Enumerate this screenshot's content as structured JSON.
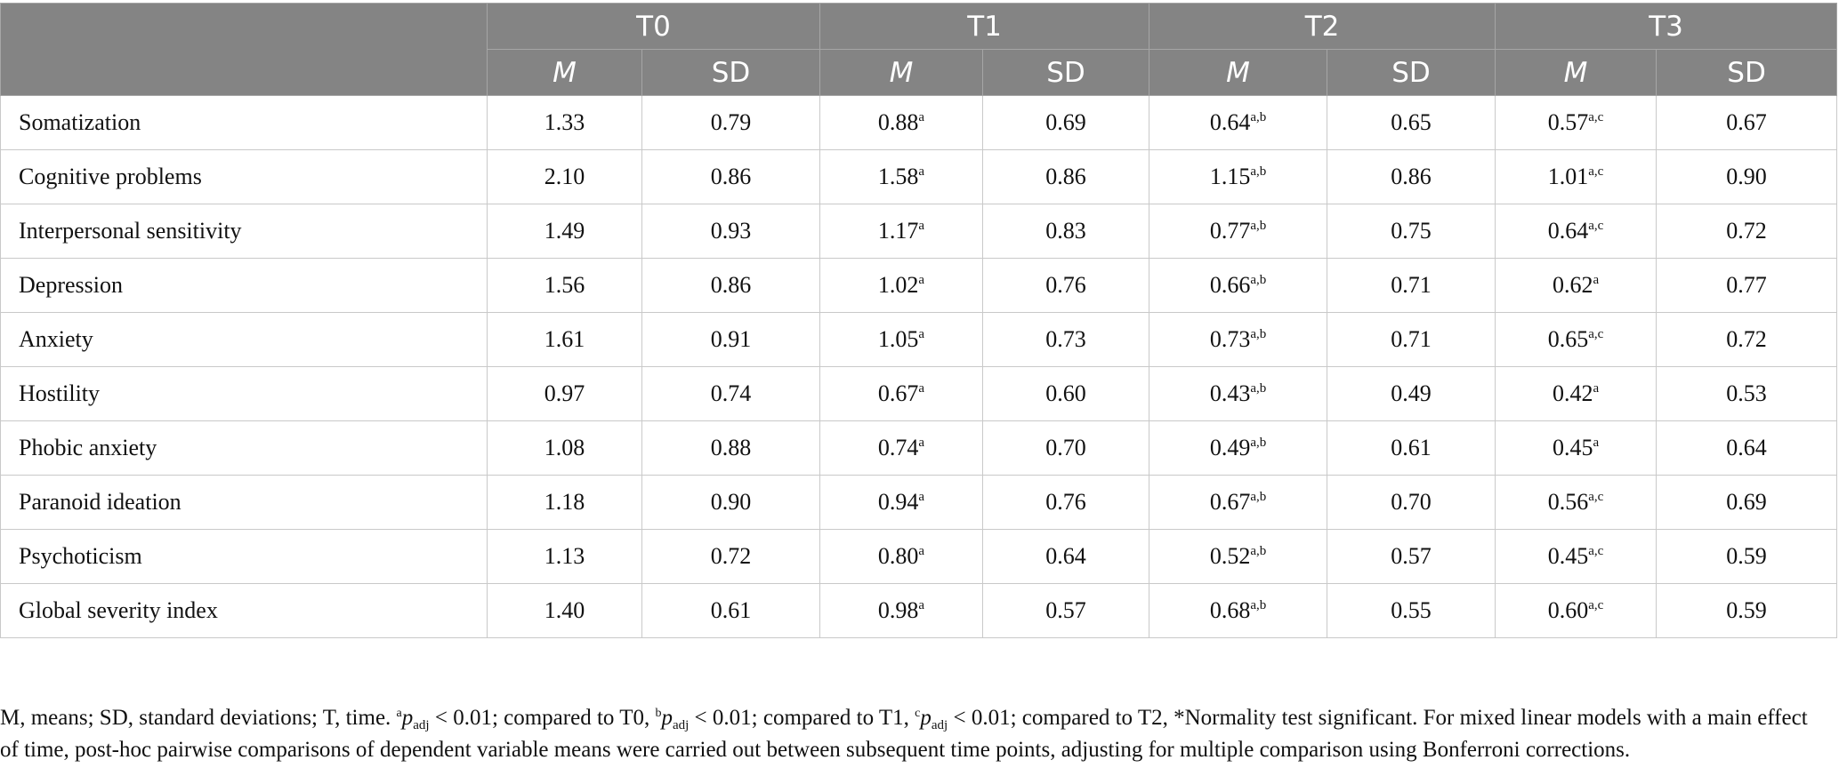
{
  "table": {
    "groups": [
      "T0",
      "T1",
      "T2",
      "T3"
    ],
    "subheaders": [
      "M",
      "SD"
    ],
    "rows": [
      {
        "label": "Somatization",
        "v": [
          [
            "1.33",
            ""
          ],
          [
            "0.79",
            ""
          ],
          [
            "0.88",
            "a"
          ],
          [
            "0.69",
            ""
          ],
          [
            "0.64",
            "a,b"
          ],
          [
            "0.65",
            ""
          ],
          [
            "0.57",
            "a,c"
          ],
          [
            "0.67",
            ""
          ]
        ]
      },
      {
        "label": "Cognitive problems",
        "v": [
          [
            "2.10",
            ""
          ],
          [
            "0.86",
            ""
          ],
          [
            "1.58",
            "a"
          ],
          [
            "0.86",
            ""
          ],
          [
            "1.15",
            "a,b"
          ],
          [
            "0.86",
            ""
          ],
          [
            "1.01",
            "a,c"
          ],
          [
            "0.90",
            ""
          ]
        ]
      },
      {
        "label": "Interpersonal sensitivity",
        "v": [
          [
            "1.49",
            ""
          ],
          [
            "0.93",
            ""
          ],
          [
            "1.17",
            "a"
          ],
          [
            "0.83",
            ""
          ],
          [
            "0.77",
            "a,b"
          ],
          [
            "0.75",
            ""
          ],
          [
            "0.64",
            "a,c"
          ],
          [
            "0.72",
            ""
          ]
        ]
      },
      {
        "label": "Depression",
        "v": [
          [
            "1.56",
            ""
          ],
          [
            "0.86",
            ""
          ],
          [
            "1.02",
            "a"
          ],
          [
            "0.76",
            ""
          ],
          [
            "0.66",
            "a,b"
          ],
          [
            "0.71",
            ""
          ],
          [
            "0.62",
            "a"
          ],
          [
            "0.77",
            ""
          ]
        ]
      },
      {
        "label": "Anxiety",
        "v": [
          [
            "1.61",
            ""
          ],
          [
            "0.91",
            ""
          ],
          [
            "1.05",
            "a"
          ],
          [
            "0.73",
            ""
          ],
          [
            "0.73",
            "a,b"
          ],
          [
            "0.71",
            ""
          ],
          [
            "0.65",
            "a,c"
          ],
          [
            "0.72",
            ""
          ]
        ]
      },
      {
        "label": "Hostility",
        "v": [
          [
            "0.97",
            ""
          ],
          [
            "0.74",
            ""
          ],
          [
            "0.67",
            "a"
          ],
          [
            "0.60",
            ""
          ],
          [
            "0.43",
            "a,b"
          ],
          [
            "0.49",
            ""
          ],
          [
            "0.42",
            "a"
          ],
          [
            "0.53",
            ""
          ]
        ]
      },
      {
        "label": "Phobic anxiety",
        "v": [
          [
            "1.08",
            ""
          ],
          [
            "0.88",
            ""
          ],
          [
            "0.74",
            "a"
          ],
          [
            "0.70",
            ""
          ],
          [
            "0.49",
            "a,b"
          ],
          [
            "0.61",
            ""
          ],
          [
            "0.45",
            "a"
          ],
          [
            "0.64",
            ""
          ]
        ]
      },
      {
        "label": "Paranoid ideation",
        "v": [
          [
            "1.18",
            ""
          ],
          [
            "0.90",
            ""
          ],
          [
            "0.94",
            "a"
          ],
          [
            "0.76",
            ""
          ],
          [
            "0.67",
            "a,b"
          ],
          [
            "0.70",
            ""
          ],
          [
            "0.56",
            "a,c"
          ],
          [
            "0.69",
            ""
          ]
        ]
      },
      {
        "label": "Psychoticism",
        "v": [
          [
            "1.13",
            ""
          ],
          [
            "0.72",
            ""
          ],
          [
            "0.80",
            "a"
          ],
          [
            "0.64",
            ""
          ],
          [
            "0.52",
            "a,b"
          ],
          [
            "0.57",
            ""
          ],
          [
            "0.45",
            "a,c"
          ],
          [
            "0.59",
            ""
          ]
        ]
      },
      {
        "label": "Global severity index",
        "v": [
          [
            "1.40",
            ""
          ],
          [
            "0.61",
            ""
          ],
          [
            "0.98",
            "a"
          ],
          [
            "0.57",
            ""
          ],
          [
            "0.68",
            "a,b"
          ],
          [
            "0.55",
            ""
          ],
          [
            "0.60",
            "a,c"
          ],
          [
            "0.59",
            ""
          ]
        ]
      }
    ]
  },
  "note": {
    "lead": "M, means; SD, standard deviations; T, time. ",
    "a_sup": "a",
    "p": "p",
    "adj": "adj",
    "a_rest": " < 0.01; compared to T0, ",
    "b_sup": "b",
    "b_rest": " < 0.01; compared to T1, ",
    "c_sup": "c",
    "c_rest": " < 0.01; compared to T2, *Normality test significant. For mixed linear models with a main effect of time, post-hoc pairwise comparisons of dependent variable means were carried out between subsequent time points, adjusting for multiple comparison using Bonferroni corrections."
  },
  "colors": {
    "header_bg": "#848484",
    "header_text": "#ffffff",
    "grid": "#c9c9c9",
    "text": "#111111"
  }
}
